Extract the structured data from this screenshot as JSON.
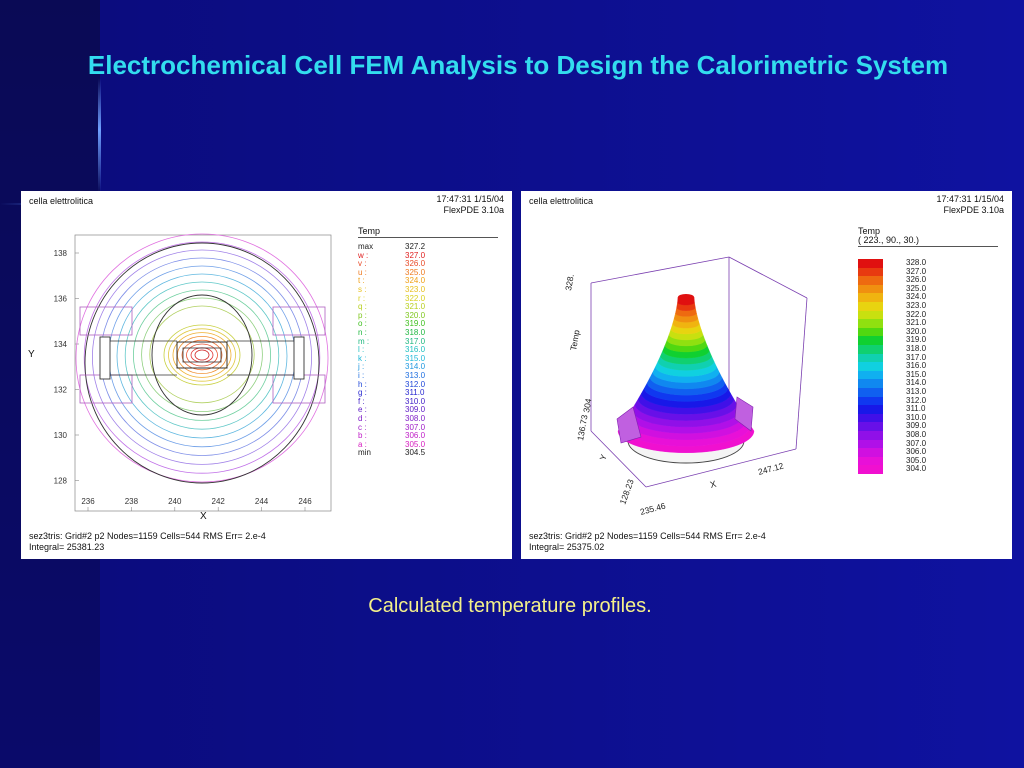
{
  "slide": {
    "title": "Electrochemical Cell FEM Analysis to Design the Calorimetric System",
    "caption": "Calculated temperature profiles."
  },
  "left_plot": {
    "header": "cella elettrolitica",
    "timestamp": "17:47:31 1/15/04",
    "software": "FlexPDE 3.10a",
    "legend_title": "Temp",
    "legend": [
      {
        "key": "max",
        "value": "327.2",
        "color": "#222222"
      },
      {
        "key": "w :",
        "value": "327.0",
        "color": "#e02020"
      },
      {
        "key": "v :",
        "value": "326.0",
        "color": "#e84a28"
      },
      {
        "key": "u :",
        "value": "325.0",
        "color": "#ee7a20"
      },
      {
        "key": "t :",
        "value": "324.0",
        "color": "#f0a018"
      },
      {
        "key": "s :",
        "value": "323.0",
        "color": "#e8c020"
      },
      {
        "key": "r :",
        "value": "322.0",
        "color": "#d8d020"
      },
      {
        "key": "q :",
        "value": "321.0",
        "color": "#b8d020"
      },
      {
        "key": "p :",
        "value": "320.0",
        "color": "#80c820"
      },
      {
        "key": "o :",
        "value": "319.0",
        "color": "#40c020"
      },
      {
        "key": "n :",
        "value": "318.0",
        "color": "#20b840"
      },
      {
        "key": "m :",
        "value": "317.0",
        "color": "#20b880"
      },
      {
        "key": "l :",
        "value": "316.0",
        "color": "#20c0c0"
      },
      {
        "key": "k :",
        "value": "315.0",
        "color": "#20b8d8"
      },
      {
        "key": "j :",
        "value": "314.0",
        "color": "#2098e0"
      },
      {
        "key": "i :",
        "value": "313.0",
        "color": "#2070e0"
      },
      {
        "key": "h :",
        "value": "312.0",
        "color": "#2048d8"
      },
      {
        "key": "g :",
        "value": "311.0",
        "color": "#2828d0"
      },
      {
        "key": "f :",
        "value": "310.0",
        "color": "#4020c8"
      },
      {
        "key": "e :",
        "value": "309.0",
        "color": "#6020c8"
      },
      {
        "key": "d :",
        "value": "308.0",
        "color": "#8020c8"
      },
      {
        "key": "c :",
        "value": "307.0",
        "color": "#a020c8"
      },
      {
        "key": "b :",
        "value": "306.0",
        "color": "#c020c8"
      },
      {
        "key": "a :",
        "value": "305.0",
        "color": "#d820c0"
      },
      {
        "key": "min",
        "value": "304.5",
        "color": "#222222"
      }
    ],
    "y_label": "Y",
    "x_label": "X",
    "y_ticks": [
      "138",
      "136",
      "134",
      "132",
      "130",
      "128"
    ],
    "x_ticks": [
      "236",
      "238",
      "240",
      "242",
      "244",
      "246"
    ],
    "footer_line1": "sez3tris:  Grid#2  p2  Nodes=1159 Cells=544 RMS Err= 2.e-4",
    "footer_line2": "Integral=   25381.23"
  },
  "right_plot": {
    "header": "cella elettrolitica",
    "timestamp": "17:47:31 1/15/04",
    "software": "FlexPDE 3.10a",
    "legend_title": "Temp",
    "legend_subtitle": "( 223., 90., 30.)",
    "colorbar": [
      {
        "value": "328.0",
        "color": "#e01010"
      },
      {
        "value": "327.0",
        "color": "#e83a10"
      },
      {
        "value": "326.0",
        "color": "#ee6a10"
      },
      {
        "value": "325.0",
        "color": "#f09010"
      },
      {
        "value": "324.0",
        "color": "#f0b410"
      },
      {
        "value": "323.0",
        "color": "#e8d410"
      },
      {
        "value": "322.0",
        "color": "#c8e010"
      },
      {
        "value": "321.0",
        "color": "#90e010"
      },
      {
        "value": "320.0",
        "color": "#50d810"
      },
      {
        "value": "319.0",
        "color": "#10d030"
      },
      {
        "value": "318.0",
        "color": "#10d070"
      },
      {
        "value": "317.0",
        "color": "#10d0b0"
      },
      {
        "value": "316.0",
        "color": "#10d0e0"
      },
      {
        "value": "315.0",
        "color": "#10b0f0"
      },
      {
        "value": "314.0",
        "color": "#1088f0"
      },
      {
        "value": "313.0",
        "color": "#1060f0"
      },
      {
        "value": "312.0",
        "color": "#1038f0"
      },
      {
        "value": "311.0",
        "color": "#1818e8"
      },
      {
        "value": "310.0",
        "color": "#4010e8"
      },
      {
        "value": "309.0",
        "color": "#6810e8"
      },
      {
        "value": "308.0",
        "color": "#9010e8"
      },
      {
        "value": "307.0",
        "color": "#b010e8"
      },
      {
        "value": "306.0",
        "color": "#d010e0"
      },
      {
        "value": "305.0",
        "color": "#e810d8"
      },
      {
        "value": "304.0",
        "color": "#f010d0"
      }
    ],
    "axis_temp": "Temp",
    "axis_temp_tick_top": "328.",
    "axis_temp_tick_bottom": "304",
    "axis_y": "Y",
    "axis_y_tick_top": "136.73",
    "axis_y_tick_bottom": "128.23",
    "axis_x": "X",
    "axis_x_tick_left": "235.46",
    "axis_x_tick_right": "247.12",
    "footer_line1": "sez3tris:  Grid#2  p2  Nodes=1159 Cells=544 RMS Err= 2.e-4",
    "footer_line2": "Integral=  25375.02"
  }
}
